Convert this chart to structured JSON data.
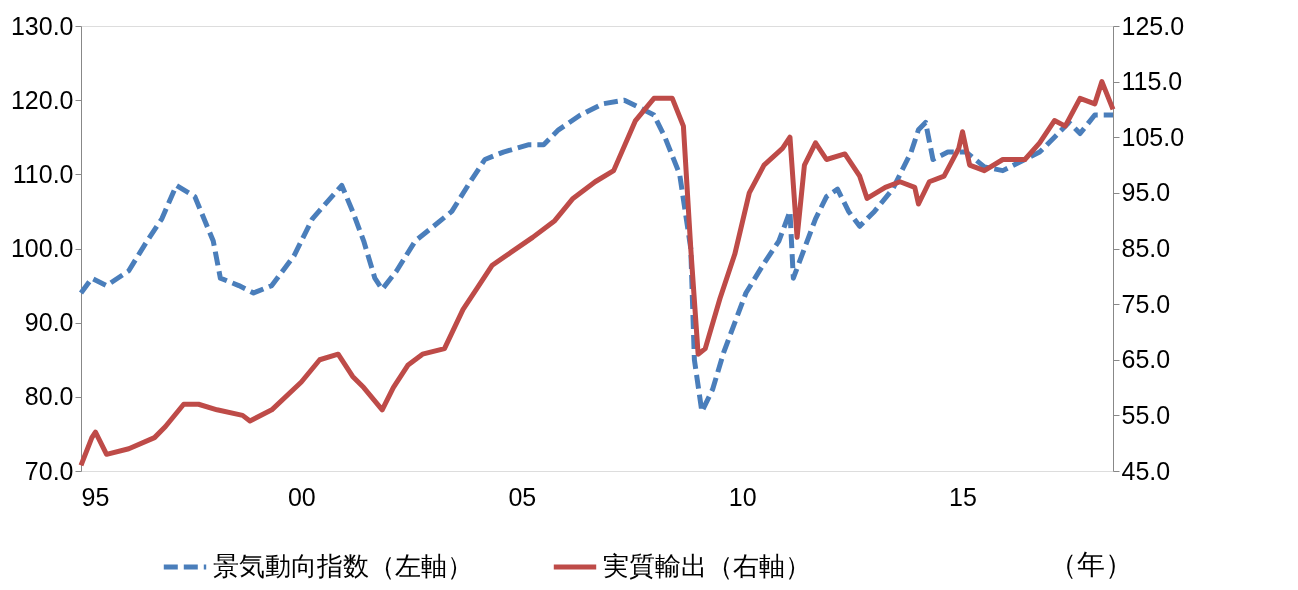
{
  "chart_data": {
    "type": "line",
    "xlabel": "（年）",
    "legend": "bottom",
    "grid": false,
    "marker": "none",
    "xlim": [
      "1995-01",
      "2018-06"
    ],
    "xticks": [
      {
        "value": "1995",
        "label": "95"
      },
      {
        "value": "2000",
        "label": "00"
      },
      {
        "value": "2005",
        "label": "05"
      },
      {
        "value": "2010",
        "label": "10"
      },
      {
        "value": "2015",
        "label": "15"
      }
    ],
    "ylim": [
      70,
      130
    ],
    "yticks": [
      {
        "value": 70,
        "label": "70.0"
      },
      {
        "value": 80,
        "label": "80.0"
      },
      {
        "value": 90,
        "label": "90.0"
      },
      {
        "value": 100,
        "label": "100.0"
      },
      {
        "value": 110,
        "label": "110.0"
      },
      {
        "value": 120,
        "label": "120.0"
      },
      {
        "value": 130,
        "label": "130.0"
      }
    ],
    "y2lim": [
      45,
      125
    ],
    "y2ticks": [
      {
        "value": 45,
        "label": "45.0"
      },
      {
        "value": 55,
        "label": "55.0"
      },
      {
        "value": 65,
        "label": "65.0"
      },
      {
        "value": 75,
        "label": "75.0"
      },
      {
        "value": 85,
        "label": "85.0"
      },
      {
        "value": 95,
        "label": "95.0"
      },
      {
        "value": 105,
        "label": "105.0"
      },
      {
        "value": 115,
        "label": "115.0"
      },
      {
        "value": 125,
        "label": "125.0"
      }
    ],
    "series": [
      {
        "name": "景気動向指数（左軸）",
        "color": "#4a7ebb",
        "line_style": "dashed",
        "axis": "y",
        "x": [
          "1995-01",
          "1995-04",
          "1995-08",
          "1996-02",
          "1996-07",
          "1996-11",
          "1997-03",
          "1997-08",
          "1998-01",
          "1998-03",
          "1998-08",
          "1998-12",
          "1999-05",
          "1999-11",
          "2000-04",
          "2000-12",
          "2001-03",
          "2001-06",
          "2001-09",
          "2001-11",
          "2002-03",
          "2002-08",
          "2003-01",
          "2003-06",
          "2003-11",
          "2004-03",
          "2004-08",
          "2005-03",
          "2005-07",
          "2005-11",
          "2006-05",
          "2006-11",
          "2007-05",
          "2007-09",
          "2008-01",
          "2008-04",
          "2008-08",
          "2008-11",
          "2008-12",
          "2009-02",
          "2009-05",
          "2009-08",
          "2010-02",
          "2010-07",
          "2010-11",
          "2011-02",
          "2011-03",
          "2011-06",
          "2011-09",
          "2011-12",
          "2012-03",
          "2012-06",
          "2012-09",
          "2013-01",
          "2013-06",
          "2013-11",
          "2014-01",
          "2014-03",
          "2014-05",
          "2014-09",
          "2015-02",
          "2015-07",
          "2015-12",
          "2016-06",
          "2016-10",
          "2017-02",
          "2017-06",
          "2017-09",
          "2018-01",
          "2018-06"
        ],
        "values": [
          94,
          96,
          95,
          97,
          101,
          104,
          108.5,
          107,
          101,
          96,
          95,
          94,
          95,
          99,
          104,
          108.5,
          105,
          101,
          96,
          94.5,
          97,
          101,
          103,
          105,
          109,
          112,
          113,
          114,
          114,
          116,
          118,
          119.5,
          120,
          119,
          118,
          115,
          110,
          100,
          85,
          78,
          81,
          86,
          94,
          98,
          101,
          105,
          96,
          100,
          104,
          107,
          108,
          105,
          103,
          105,
          108,
          113,
          116,
          117,
          112,
          113,
          113,
          111,
          110.5,
          112,
          113,
          115,
          117,
          115.5,
          118,
          118
        ]
      },
      {
        "name": "実質輸出（右軸）",
        "color": "#be4b48",
        "line_style": "solid",
        "axis": "y2",
        "x": [
          "1995-01",
          "1995-04",
          "1995-05",
          "1995-08",
          "1996-02",
          "1996-09",
          "1996-12",
          "1997-05",
          "1997-09",
          "1998-02",
          "1998-09",
          "1998-11",
          "1999-05",
          "2000-01",
          "2000-06",
          "2000-11",
          "2001-03",
          "2001-06",
          "2001-11",
          "2002-02",
          "2002-06",
          "2002-10",
          "2003-04",
          "2003-09",
          "2004-01",
          "2004-05",
          "2005-04",
          "2005-10",
          "2006-03",
          "2006-09",
          "2007-02",
          "2007-08",
          "2008-01",
          "2008-06",
          "2008-09",
          "2008-11",
          "2009-01",
          "2009-03",
          "2009-07",
          "2009-11",
          "2010-03",
          "2010-07",
          "2010-12",
          "2011-02",
          "2011-04",
          "2011-06",
          "2011-09",
          "2011-12",
          "2012-05",
          "2012-09",
          "2012-11",
          "2013-04",
          "2013-08",
          "2013-12",
          "2014-01",
          "2014-04",
          "2014-08",
          "2014-12",
          "2015-01",
          "2015-03",
          "2015-07",
          "2015-12",
          "2016-06",
          "2016-10",
          "2017-02",
          "2017-05",
          "2017-09",
          "2018-01",
          "2018-03",
          "2018-06"
        ],
        "values": [
          46,
          51,
          52,
          48,
          49,
          51,
          53,
          57,
          57,
          56,
          55,
          54,
          56,
          61,
          65,
          66,
          62,
          60,
          56,
          60,
          64,
          66,
          67,
          74,
          78,
          82,
          87,
          90,
          94,
          97,
          99,
          108,
          112,
          112,
          107,
          85,
          66,
          67,
          76,
          84,
          95,
          100,
          103,
          105,
          87,
          100,
          104,
          101,
          102,
          98,
          94,
          96,
          97,
          96,
          93,
          97,
          98,
          103,
          106,
          100,
          99,
          101,
          101,
          104,
          108,
          107,
          112,
          111,
          115,
          110
        ]
      }
    ]
  }
}
